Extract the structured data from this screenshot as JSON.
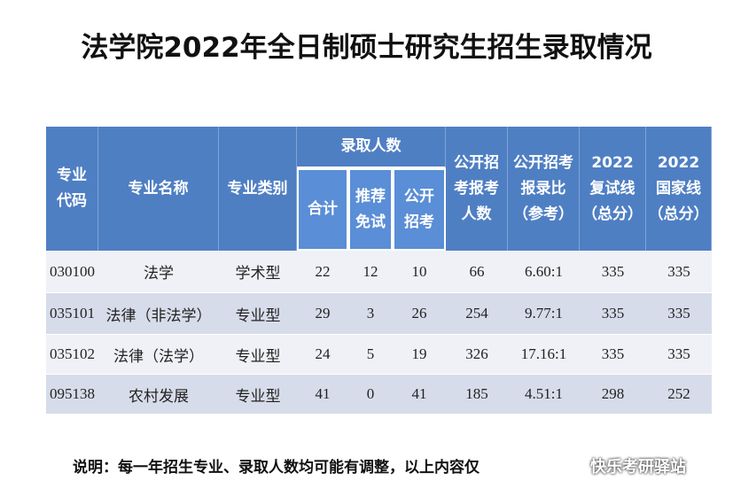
{
  "title": "法学院2022年全日制硕士研究生招生录取情况",
  "table": {
    "header": {
      "group": "录取人数",
      "columns": [
        [
          "专业",
          "代码"
        ],
        [
          "专业名称"
        ],
        [
          "专业类别"
        ],
        [
          "合计"
        ],
        [
          "推荐",
          "免试"
        ],
        [
          "公开",
          "招考"
        ],
        [
          "公开招",
          "考报考",
          "人数"
        ],
        [
          "公开招考",
          "报录比",
          "（参考）"
        ],
        [
          "2022",
          "复试线",
          "（总分）"
        ],
        [
          "2022",
          "国家线",
          "（总分）"
        ]
      ]
    },
    "rows": [
      [
        "030100",
        "法学",
        "学术型",
        22,
        12,
        10,
        66,
        "6.60:1",
        335,
        335
      ],
      [
        "035101",
        "法律（非法学）",
        "专业型",
        29,
        3,
        26,
        254,
        "9.77:1",
        335,
        335
      ],
      [
        "035102",
        "法律（法学）",
        "专业型",
        24,
        5,
        19,
        326,
        "17.16:1",
        335,
        335
      ],
      [
        "095138",
        "农村发展",
        "专业型",
        41,
        0,
        41,
        185,
        "4.51:1",
        298,
        252
      ]
    ]
  },
  "note": "说明：每一年招生专业、录取人数均可能有调整，以上内容仅",
  "watermark": "快乐考研驿站"
}
